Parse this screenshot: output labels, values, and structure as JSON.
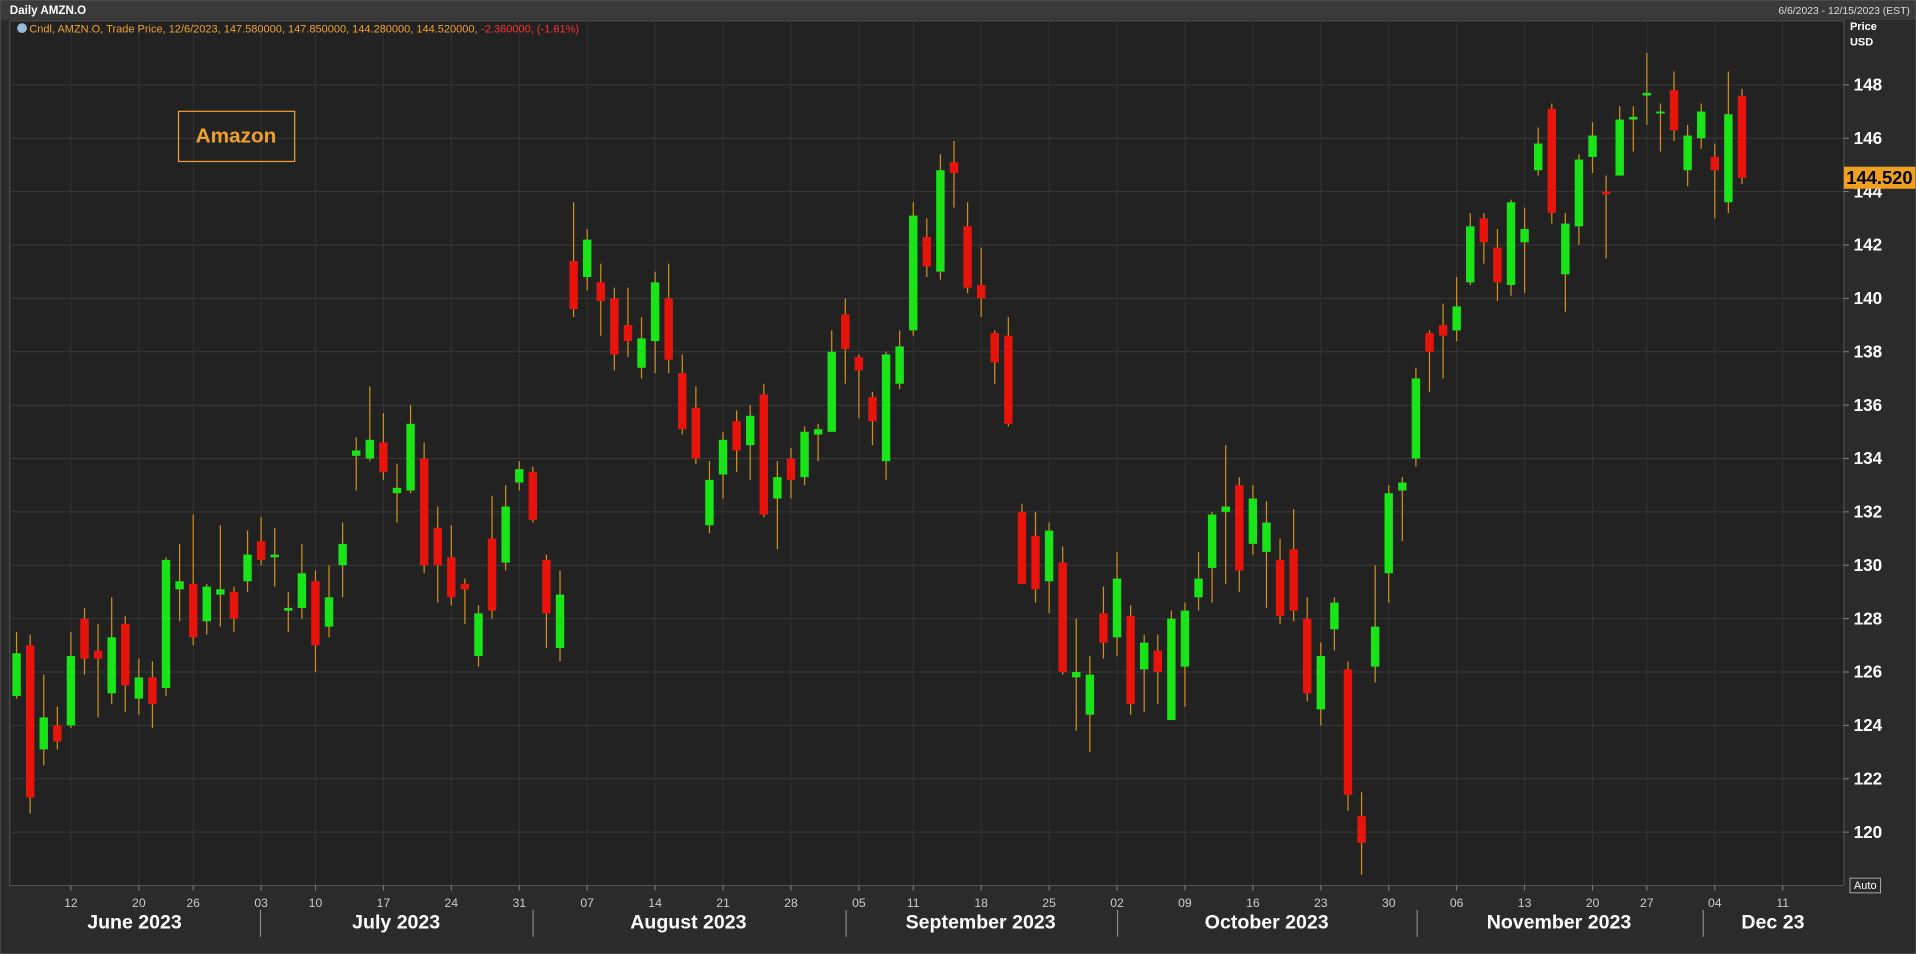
{
  "chart_data": {
    "type": "candlestick",
    "title": "Daily AMZN.O",
    "date_range": "6/6/2023 - 12/15/2023 (EST)",
    "legend_text": "Cndl, AMZN.O, Trade Price, 12/6/2023, 147.580000, 147.850000, 144.280000, 144.520000,",
    "legend_change": "-2.360000, (-1.61%)",
    "annotation": "Amazon",
    "y_axis_label": "Price",
    "y_axis_unit": "USD",
    "auto_button": "Auto",
    "last_price": {
      "value": 144.52,
      "label": "144.520"
    },
    "month_labels": [
      "June 2023",
      "July 2023",
      "August 2023",
      "September 2023",
      "October 2023",
      "November 2023",
      "Dec 23"
    ],
    "categories": [
      null,
      null,
      null,
      null,
      "12",
      null,
      null,
      null,
      null,
      "20",
      null,
      null,
      null,
      "26",
      null,
      null,
      null,
      null,
      "03",
      null,
      null,
      null,
      "10",
      null,
      null,
      null,
      null,
      "17",
      null,
      null,
      null,
      null,
      "24",
      null,
      null,
      null,
      null,
      "31",
      null,
      null,
      null,
      null,
      "07",
      null,
      null,
      null,
      null,
      "14",
      null,
      null,
      null,
      null,
      "21",
      null,
      null,
      null,
      null,
      "28",
      null,
      null,
      null,
      null,
      "05",
      null,
      null,
      null,
      "11",
      null,
      null,
      null,
      null,
      "18",
      null,
      null,
      null,
      null,
      "25",
      null,
      null,
      null,
      null,
      "02",
      null,
      null,
      null,
      null,
      "09",
      null,
      null,
      null,
      null,
      "16",
      null,
      null,
      null,
      null,
      "23",
      null,
      null,
      null,
      null,
      "30",
      null,
      null,
      null,
      null,
      "06",
      null,
      null,
      null,
      null,
      "13",
      null,
      null,
      null,
      null,
      "20",
      null,
      null,
      null,
      "27",
      null,
      null,
      null,
      null,
      "04",
      null,
      null,
      null,
      null,
      "11",
      null,
      null,
      null,
      null
    ],
    "open": [
      125.1,
      127.0,
      123.1,
      124.0,
      124.0,
      128.0,
      126.8,
      125.2,
      127.8,
      125.0,
      125.8,
      125.4,
      129.1,
      129.3,
      127.9,
      128.9,
      129.0,
      129.4,
      130.9,
      130.3,
      128.3,
      128.4,
      129.4,
      127.7,
      130.0,
      134.1,
      134.0,
      134.6,
      132.7,
      132.8,
      134.0,
      131.4,
      130.3,
      129.3,
      126.6,
      131.0,
      130.1,
      133.1,
      133.5,
      130.2,
      126.9,
      141.4,
      140.8,
      140.6,
      140.0,
      139.0,
      137.4,
      138.4,
      140.0,
      137.2,
      135.9,
      131.5,
      133.4,
      135.4,
      134.5,
      136.4,
      132.5,
      134.0,
      133.3,
      134.9,
      135.0,
      139.4,
      137.8,
      136.3,
      133.9,
      136.8,
      138.8,
      142.3,
      141.0,
      145.1,
      142.7,
      140.5,
      138.7,
      138.6,
      132.0,
      131.1,
      129.4,
      130.1,
      125.8,
      124.4,
      128.2,
      127.3,
      128.1,
      126.1,
      126.8,
      124.2,
      126.2,
      128.8,
      129.9,
      132.0,
      133.0,
      130.8,
      130.5,
      130.2,
      130.6,
      128.0,
      124.6,
      127.6,
      126.1,
      120.6,
      126.2,
      129.7,
      132.8,
      134.0,
      138.7,
      139.0,
      138.8,
      140.6,
      143.0,
      141.9,
      140.5,
      142.1,
      144.8,
      147.1,
      140.9,
      142.7,
      145.3,
      144.0,
      144.6,
      146.7,
      147.6,
      147.0,
      147.8,
      144.8,
      146.0,
      145.3,
      143.6,
      147.58,
      null,
      null,
      null,
      null,
      null,
      null,
      null
    ],
    "high": [
      127.5,
      127.4,
      125.9,
      124.7,
      127.5,
      128.4,
      127.8,
      128.8,
      128.1,
      126.5,
      126.4,
      130.3,
      130.8,
      131.9,
      129.3,
      131.5,
      129.2,
      131.3,
      131.8,
      131.4,
      129.0,
      130.8,
      129.8,
      130.0,
      131.6,
      134.8,
      136.7,
      135.7,
      133.8,
      136.0,
      134.6,
      132.2,
      131.5,
      129.5,
      128.5,
      132.6,
      133.0,
      133.9,
      133.7,
      130.4,
      129.8,
      143.6,
      142.6,
      141.3,
      140.4,
      140.4,
      139.3,
      141.0,
      141.3,
      137.9,
      136.7,
      133.9,
      135.0,
      135.8,
      136.0,
      136.8,
      133.9,
      134.4,
      135.2,
      135.3,
      138.8,
      140.0,
      137.9,
      136.5,
      138.0,
      138.8,
      143.6,
      143.0,
      145.4,
      145.9,
      143.6,
      141.9,
      138.8,
      139.3,
      132.3,
      132.0,
      131.6,
      130.7,
      128.0,
      126.6,
      129.2,
      130.5,
      128.5,
      127.4,
      127.4,
      128.3,
      128.6,
      130.5,
      132.0,
      134.5,
      133.3,
      133.0,
      132.4,
      131.0,
      132.1,
      128.8,
      127.1,
      128.8,
      126.4,
      121.5,
      130.0,
      133.0,
      133.3,
      137.4,
      138.8,
      139.8,
      140.8,
      143.2,
      143.2,
      142.6,
      143.7,
      143.4,
      146.4,
      147.3,
      143.2,
      145.4,
      146.6,
      144.6,
      147.2,
      147.2,
      149.2,
      147.3,
      148.5,
      146.5,
      147.3,
      145.8,
      148.5,
      147.85,
      null,
      null,
      null,
      null,
      null,
      null,
      null
    ],
    "low": [
      125.0,
      120.7,
      122.5,
      123.1,
      123.9,
      125.9,
      124.3,
      124.8,
      124.5,
      124.4,
      123.9,
      125.1,
      127.9,
      127.0,
      127.4,
      127.7,
      127.5,
      129.0,
      130.0,
      129.2,
      127.5,
      128.0,
      126.0,
      127.3,
      128.8,
      132.8,
      133.9,
      133.2,
      131.6,
      132.7,
      129.7,
      128.6,
      128.5,
      127.8,
      126.2,
      128.0,
      129.8,
      132.8,
      131.6,
      126.9,
      126.4,
      139.3,
      140.3,
      138.6,
      137.3,
      137.8,
      137.0,
      137.2,
      137.2,
      134.9,
      133.8,
      131.2,
      132.5,
      133.5,
      133.2,
      131.8,
      130.6,
      132.5,
      133.0,
      133.9,
      135.0,
      136.8,
      135.5,
      134.5,
      133.2,
      136.6,
      138.6,
      140.8,
      140.7,
      143.4,
      140.2,
      139.3,
      136.8,
      135.2,
      129.3,
      128.6,
      128.2,
      125.9,
      123.8,
      123.0,
      126.5,
      126.6,
      124.4,
      124.5,
      124.8,
      124.2,
      124.7,
      128.3,
      128.6,
      129.3,
      129.0,
      130.4,
      128.4,
      127.8,
      127.9,
      124.9,
      124.0,
      126.8,
      120.8,
      118.4,
      125.6,
      128.6,
      130.9,
      133.7,
      136.5,
      137.0,
      138.4,
      140.5,
      141.3,
      139.9,
      140.1,
      140.2,
      144.6,
      142.8,
      139.5,
      142.0,
      144.7,
      141.5,
      144.6,
      145.5,
      146.5,
      145.5,
      145.9,
      144.2,
      145.6,
      143.0,
      143.2,
      144.28,
      null,
      null,
      null,
      null,
      null,
      null,
      null
    ],
    "close": [
      126.7,
      121.3,
      124.3,
      123.4,
      126.6,
      126.5,
      126.5,
      127.3,
      125.5,
      125.8,
      124.8,
      130.2,
      129.4,
      127.3,
      129.2,
      129.1,
      128.0,
      130.4,
      130.2,
      130.4,
      128.4,
      129.7,
      127.0,
      128.8,
      130.8,
      134.3,
      134.7,
      133.5,
      132.9,
      135.3,
      130.0,
      130.0,
      128.8,
      129.1,
      128.2,
      128.3,
      132.2,
      133.6,
      131.7,
      128.2,
      128.9,
      139.6,
      142.2,
      139.9,
      137.9,
      138.4,
      138.5,
      140.6,
      137.7,
      135.1,
      134.0,
      133.2,
      134.7,
      134.3,
      135.6,
      131.9,
      133.3,
      133.2,
      135.0,
      135.1,
      138.0,
      138.1,
      137.3,
      135.4,
      137.9,
      138.2,
      143.1,
      141.2,
      144.8,
      144.7,
      140.4,
      140.0,
      137.6,
      135.3,
      129.3,
      129.1,
      131.3,
      126.0,
      126.0,
      125.9,
      127.1,
      129.5,
      124.8,
      127.1,
      126.0,
      128.0,
      128.3,
      129.5,
      131.9,
      132.2,
      129.8,
      132.5,
      131.6,
      128.1,
      128.3,
      125.2,
      126.6,
      128.6,
      121.4,
      119.6,
      127.7,
      132.7,
      133.1,
      137.0,
      138.0,
      138.6,
      139.7,
      142.7,
      142.1,
      140.6,
      143.6,
      142.6,
      145.8,
      143.2,
      142.8,
      145.2,
      146.1,
      143.9,
      146.7,
      146.8,
      147.7,
      147.0,
      146.3,
      146.1,
      147.0,
      144.8,
      146.9,
      144.52,
      null,
      null,
      null,
      null,
      null,
      null,
      null
    ],
    "up_color": "#18e418",
    "down_color": "#e8140c",
    "wick_color": "#d0901e",
    "ylim": [
      118,
      150.4
    ],
    "yticks": [
      120,
      122,
      124,
      126,
      128,
      130,
      132,
      134,
      136,
      138,
      140,
      142,
      144,
      146,
      148
    ],
    "grid": true
  }
}
